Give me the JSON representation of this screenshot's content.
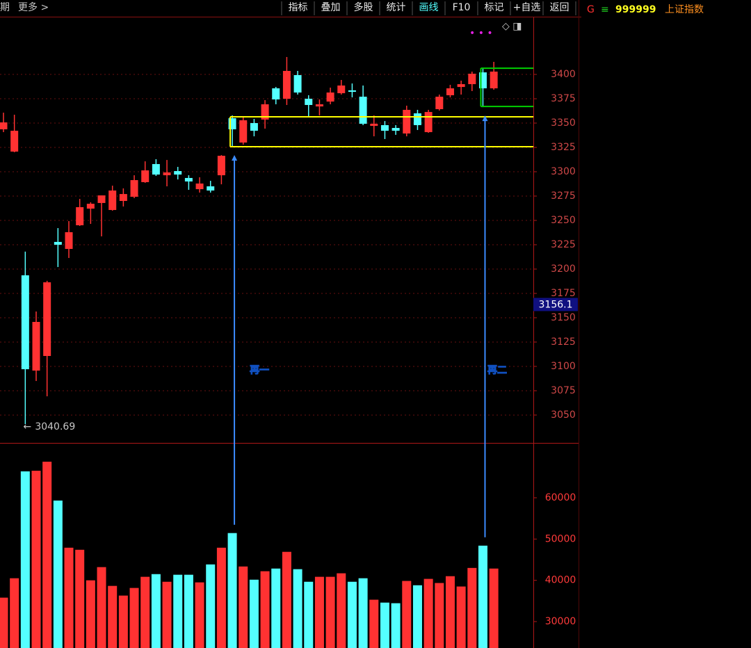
{
  "toolbar": {
    "left": [
      "期",
      "更多 >"
    ],
    "buttons": [
      "指标",
      "叠加",
      "多股",
      "统计",
      "画线",
      "F10",
      "标记",
      "+自选",
      "返回"
    ],
    "active": "画线",
    "prefix": "G",
    "code": "999999",
    "name": "上证指数"
  },
  "chart_data": [
    {
      "type": "candlestick",
      "up_color": "#ff3232",
      "down_color": "#54ffff",
      "open": [
        3343.6,
        3320.7,
        3193.6,
        3095.7,
        3110.7,
        3227.9,
        3220.7,
        3245,
        3262.1,
        3267.9,
        3260.7,
        3270,
        3274.3,
        3289.3,
        3307.9,
        3296.4,
        3300.7,
        3293.6,
        3282.1,
        3285,
        3296.4,
        3355,
        3330,
        3350,
        3353.6,
        3385.7,
        3375,
        3399.3,
        3375,
        3367.1,
        3372.1,
        3380.7,
        3383.6,
        3377.1,
        3347.1,
        3347.9,
        3345,
        3339.3,
        3360,
        3340.7,
        3364.3,
        3378.6,
        3387.1,
        3390,
        3402.1,
        3385.7
      ],
      "high": [
        3360.7,
        3358.6,
        3217.9,
        3156.4,
        3187.9,
        3242.1,
        3249.3,
        3272.1,
        3268.6,
        3275.7,
        3285.7,
        3282.9,
        3296.4,
        3310.7,
        3312.9,
        3312.1,
        3305,
        3296.4,
        3294.3,
        3290.7,
        3317.1,
        3357.9,
        3356.4,
        3354.3,
        3373.6,
        3387.1,
        3417.9,
        3403.6,
        3378.6,
        3374.3,
        3386.4,
        3394.3,
        3390.7,
        3388.6,
        3357.9,
        3352.1,
        3347.9,
        3367.9,
        3363.6,
        3363.6,
        3379.3,
        3389.3,
        3393.6,
        3402.9,
        3406.4,
        3412.9
      ],
      "low": [
        3340.7,
        3320,
        3040.69,
        3085,
        3069.3,
        3202.1,
        3211.4,
        3244.3,
        3246.4,
        3233.6,
        3260,
        3264.3,
        3272.9,
        3288.6,
        3295.7,
        3285,
        3292.1,
        3281.4,
        3278.6,
        3278.6,
        3287.1,
        3325.7,
        3327.9,
        3336.4,
        3344.3,
        3369.3,
        3368.6,
        3379.3,
        3357.1,
        3357.9,
        3369.3,
        3379.3,
        3376.4,
        3347.9,
        3336.4,
        3333.6,
        3337.9,
        3336.4,
        3342.9,
        3340,
        3362.9,
        3376.4,
        3379.3,
        3382.9,
        3366.4,
        3384.3
      ],
      "close": [
        3350.7,
        3342.1,
        3097.1,
        3145.7,
        3186.4,
        3225,
        3237.9,
        3263.6,
        3267.1,
        3275.7,
        3280.7,
        3277.1,
        3291.4,
        3301.4,
        3297.1,
        3299.3,
        3297.1,
        3290,
        3287.9,
        3280.7,
        3316.4,
        3343.6,
        3352.9,
        3342.1,
        3369.3,
        3374.3,
        3403.6,
        3381.4,
        3368.6,
        3369.3,
        3381.4,
        3388.6,
        3382.1,
        3349.3,
        3349.3,
        3342.1,
        3342.1,
        3363.6,
        3347.9,
        3361.4,
        3377.1,
        3385.7,
        3390,
        3400.7,
        3385.7,
        3402.9
      ],
      "low_mark_index": 2,
      "last_price": 3156.1,
      "ylim": [
        3021.4,
        3458.6
      ],
      "yticks": [
        3050,
        3075,
        3100,
        3125,
        3150,
        3175,
        3200,
        3225,
        3250,
        3275,
        3300,
        3325,
        3350,
        3375,
        3400
      ],
      "grid": true,
      "zones": [
        {
          "color": "#ffff00",
          "levels": [
            3356.4,
            3325.7
          ],
          "from_index": 21
        },
        {
          "color": "#00d000",
          "levels": [
            3406.4,
            3367.1
          ],
          "from_index": 44
        }
      ],
      "annotations": [
        {
          "text": "再一",
          "index": 21
        },
        {
          "text": "再二",
          "index": 44
        }
      ]
    },
    {
      "type": "bar",
      "values": [
        35800,
        40500,
        66400,
        66550,
        68740,
        59330,
        47900,
        47400,
        40000,
        43200,
        38650,
        36300,
        38150,
        40850,
        41500,
        39650,
        41350,
        41350,
        39500,
        43850,
        47900,
        51450,
        43350,
        40150,
        42200,
        42850,
        46900,
        42700,
        39650,
        40850,
        40850,
        41700,
        39650,
        40500,
        35300,
        34600,
        34450,
        39850,
        38800,
        40350,
        39350,
        41000,
        38500,
        43000,
        48400,
        42850
      ],
      "ylim": [
        23600,
        73300
      ],
      "yticks": [
        30000,
        40000,
        50000,
        60000
      ],
      "grid": false
    }
  ]
}
